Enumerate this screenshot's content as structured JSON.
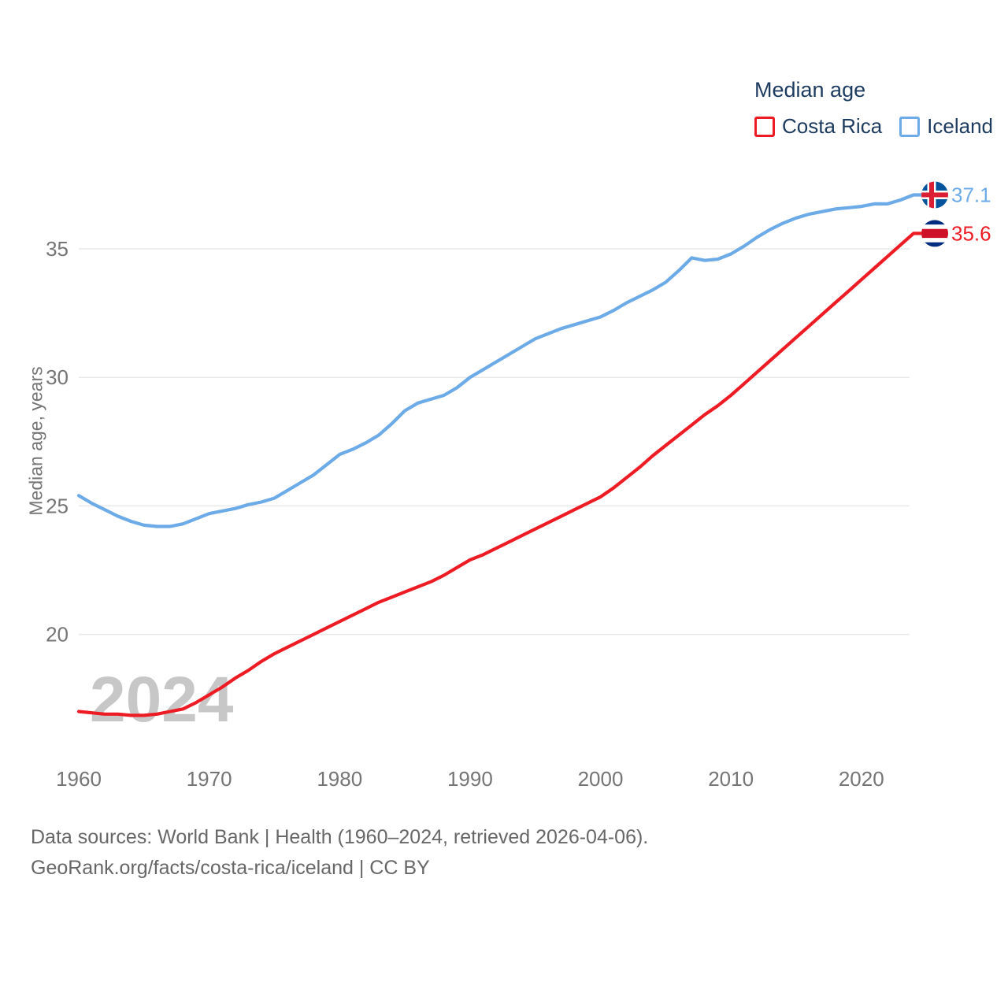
{
  "legend": {
    "title": "Median age",
    "items": [
      {
        "label": "Costa Rica",
        "color": "#ed1c24"
      },
      {
        "label": "Iceland",
        "color": "#6cabe8"
      }
    ]
  },
  "watermark": "2024",
  "footer": {
    "line1": "Data sources: World Bank | Health (1960–2024, retrieved 2026-04-06).",
    "line2": "GeoRank.org/facts/costa-rica/iceland | CC BY"
  },
  "colors": {
    "costa_rica_line": "#ed1c24",
    "iceland_line": "#6cabe8",
    "gridline": "#e9e9e9",
    "tick_text": "#757575",
    "legend_text": "#1d3a5f",
    "watermark_text": "#c7c7c7",
    "footer_text": "#676767",
    "iceland_flag_blue": "#02529C",
    "iceland_flag_red": "#DC1E35",
    "costa_rica_flag_blue": "#002B7F",
    "costa_rica_flag_red": "#CE1126"
  },
  "chart_data": {
    "type": "line",
    "title": "Median age",
    "xlabel": "",
    "ylabel": "Median age, years",
    "x_start": 1960,
    "x_end": 2024,
    "x_step": 1,
    "x_ticks": [
      1960,
      1970,
      1980,
      1990,
      2000,
      2010,
      2020
    ],
    "y_ticks": [
      20,
      25,
      30,
      35
    ],
    "ylim": [
      16.3,
      38.0
    ],
    "xlim": [
      1960,
      2024
    ],
    "grid": "horizontal",
    "legend_position": "top-right",
    "series": [
      {
        "name": "Costa Rica",
        "color": "#ed1c24",
        "end_label": "35.6",
        "flag": "costa-rica",
        "values": [
          17.0,
          16.95,
          16.9,
          16.9,
          16.85,
          16.85,
          16.9,
          17.0,
          17.1,
          17.35,
          17.65,
          17.95,
          18.3,
          18.6,
          18.95,
          19.25,
          19.5,
          19.75,
          20.0,
          20.25,
          20.5,
          20.75,
          21.0,
          21.25,
          21.45,
          21.65,
          21.85,
          22.05,
          22.3,
          22.6,
          22.9,
          23.1,
          23.35,
          23.6,
          23.85,
          24.1,
          24.35,
          24.6,
          24.85,
          25.1,
          25.35,
          25.7,
          26.1,
          26.5,
          26.95,
          27.35,
          27.75,
          28.15,
          28.55,
          28.9,
          29.3,
          29.75,
          30.2,
          30.65,
          31.1,
          31.55,
          32.0,
          32.45,
          32.9,
          33.35,
          33.8,
          34.25,
          34.7,
          35.15,
          35.6
        ]
      },
      {
        "name": "Iceland",
        "color": "#6cabe8",
        "end_label": "37.1",
        "flag": "iceland",
        "values": [
          25.4,
          25.1,
          24.85,
          24.6,
          24.4,
          24.25,
          24.2,
          24.2,
          24.3,
          24.5,
          24.7,
          24.8,
          24.9,
          25.05,
          25.15,
          25.3,
          25.6,
          25.9,
          26.2,
          26.6,
          27.0,
          27.2,
          27.45,
          27.75,
          28.2,
          28.7,
          29.0,
          29.15,
          29.3,
          29.6,
          30.0,
          30.3,
          30.6,
          30.9,
          31.2,
          31.5,
          31.7,
          31.9,
          32.05,
          32.2,
          32.35,
          32.6,
          32.9,
          33.15,
          33.4,
          33.7,
          34.15,
          34.65,
          34.55,
          34.6,
          34.8,
          35.1,
          35.45,
          35.75,
          36.0,
          36.2,
          36.35,
          36.45,
          36.55,
          36.6,
          36.65,
          36.75,
          36.75,
          36.9,
          37.1
        ]
      }
    ]
  }
}
